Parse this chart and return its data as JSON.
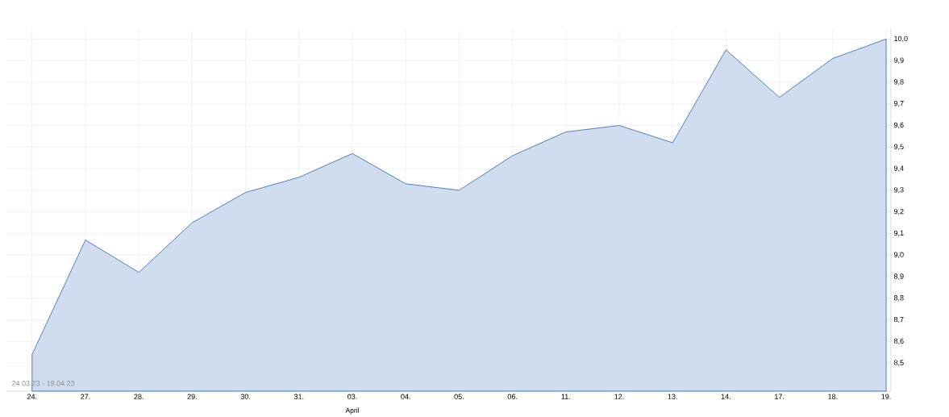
{
  "chart_data": {
    "type": "area",
    "categories": [
      "24.",
      "27.",
      "28.",
      "29.",
      "30.",
      "31.",
      "03.",
      "04.",
      "05.",
      "06.",
      "11.",
      "12.",
      "13.",
      "14.",
      "17.",
      "18.",
      "19."
    ],
    "series": [
      {
        "color": "#2a64b4",
        "values": [
          8.54,
          9.07,
          8.92,
          9.15,
          9.29,
          9.36,
          9.47,
          9.33,
          9.3,
          9.46,
          9.57,
          9.6,
          9.52,
          9.95,
          9.73,
          9.91,
          10.0
        ]
      }
    ],
    "ylim": [
      8.37,
      10.05
    ],
    "yticks": [
      {
        "value": 8.5,
        "label": "8,5"
      },
      {
        "value": 8.6,
        "label": "8,6"
      },
      {
        "value": 8.7,
        "label": "8,7"
      },
      {
        "value": 8.8,
        "label": "8,8"
      },
      {
        "value": 8.9,
        "label": "8,9"
      },
      {
        "value": 9.0,
        "label": "9,0"
      },
      {
        "value": 9.1,
        "label": "9,1"
      },
      {
        "value": 9.2,
        "label": "9,2"
      },
      {
        "value": 9.3,
        "label": "9,3"
      },
      {
        "value": 9.4,
        "label": "9,4"
      },
      {
        "value": 9.5,
        "label": "9,5"
      },
      {
        "value": 9.6,
        "label": "9,6"
      },
      {
        "value": 9.7,
        "label": "9,7"
      },
      {
        "value": 9.8,
        "label": "9,8"
      },
      {
        "value": 9.9,
        "label": "9,9"
      },
      {
        "value": 10.0,
        "label": "10,0"
      }
    ],
    "grid": true,
    "annotations": [
      "April",
      "24.03.23 - 19.04.23"
    ]
  }
}
